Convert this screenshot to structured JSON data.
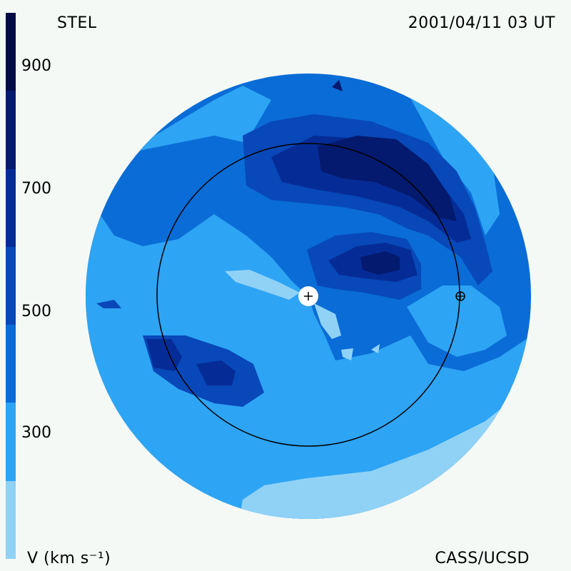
{
  "header": {
    "source_label": "STEL",
    "timestamp": "2001/04/11 03 UT"
  },
  "footer": {
    "unit_label": "V (km s⁻¹)",
    "credit": "CASS/UCSD"
  },
  "colorbar": {
    "tick_labels": [
      "900",
      "700",
      "500",
      "300"
    ],
    "colors": [
      "#90d2f6",
      "#2ea4f4",
      "#0a6cd6",
      "#0848b8",
      "#052c96",
      "#041a6e",
      "#020c44"
    ]
  },
  "map": {
    "background_color": "#f4f9f6",
    "sun_marker_icon": "sun-plus-icon",
    "earth_marker_icon": "earth-circle-cross-icon"
  }
}
